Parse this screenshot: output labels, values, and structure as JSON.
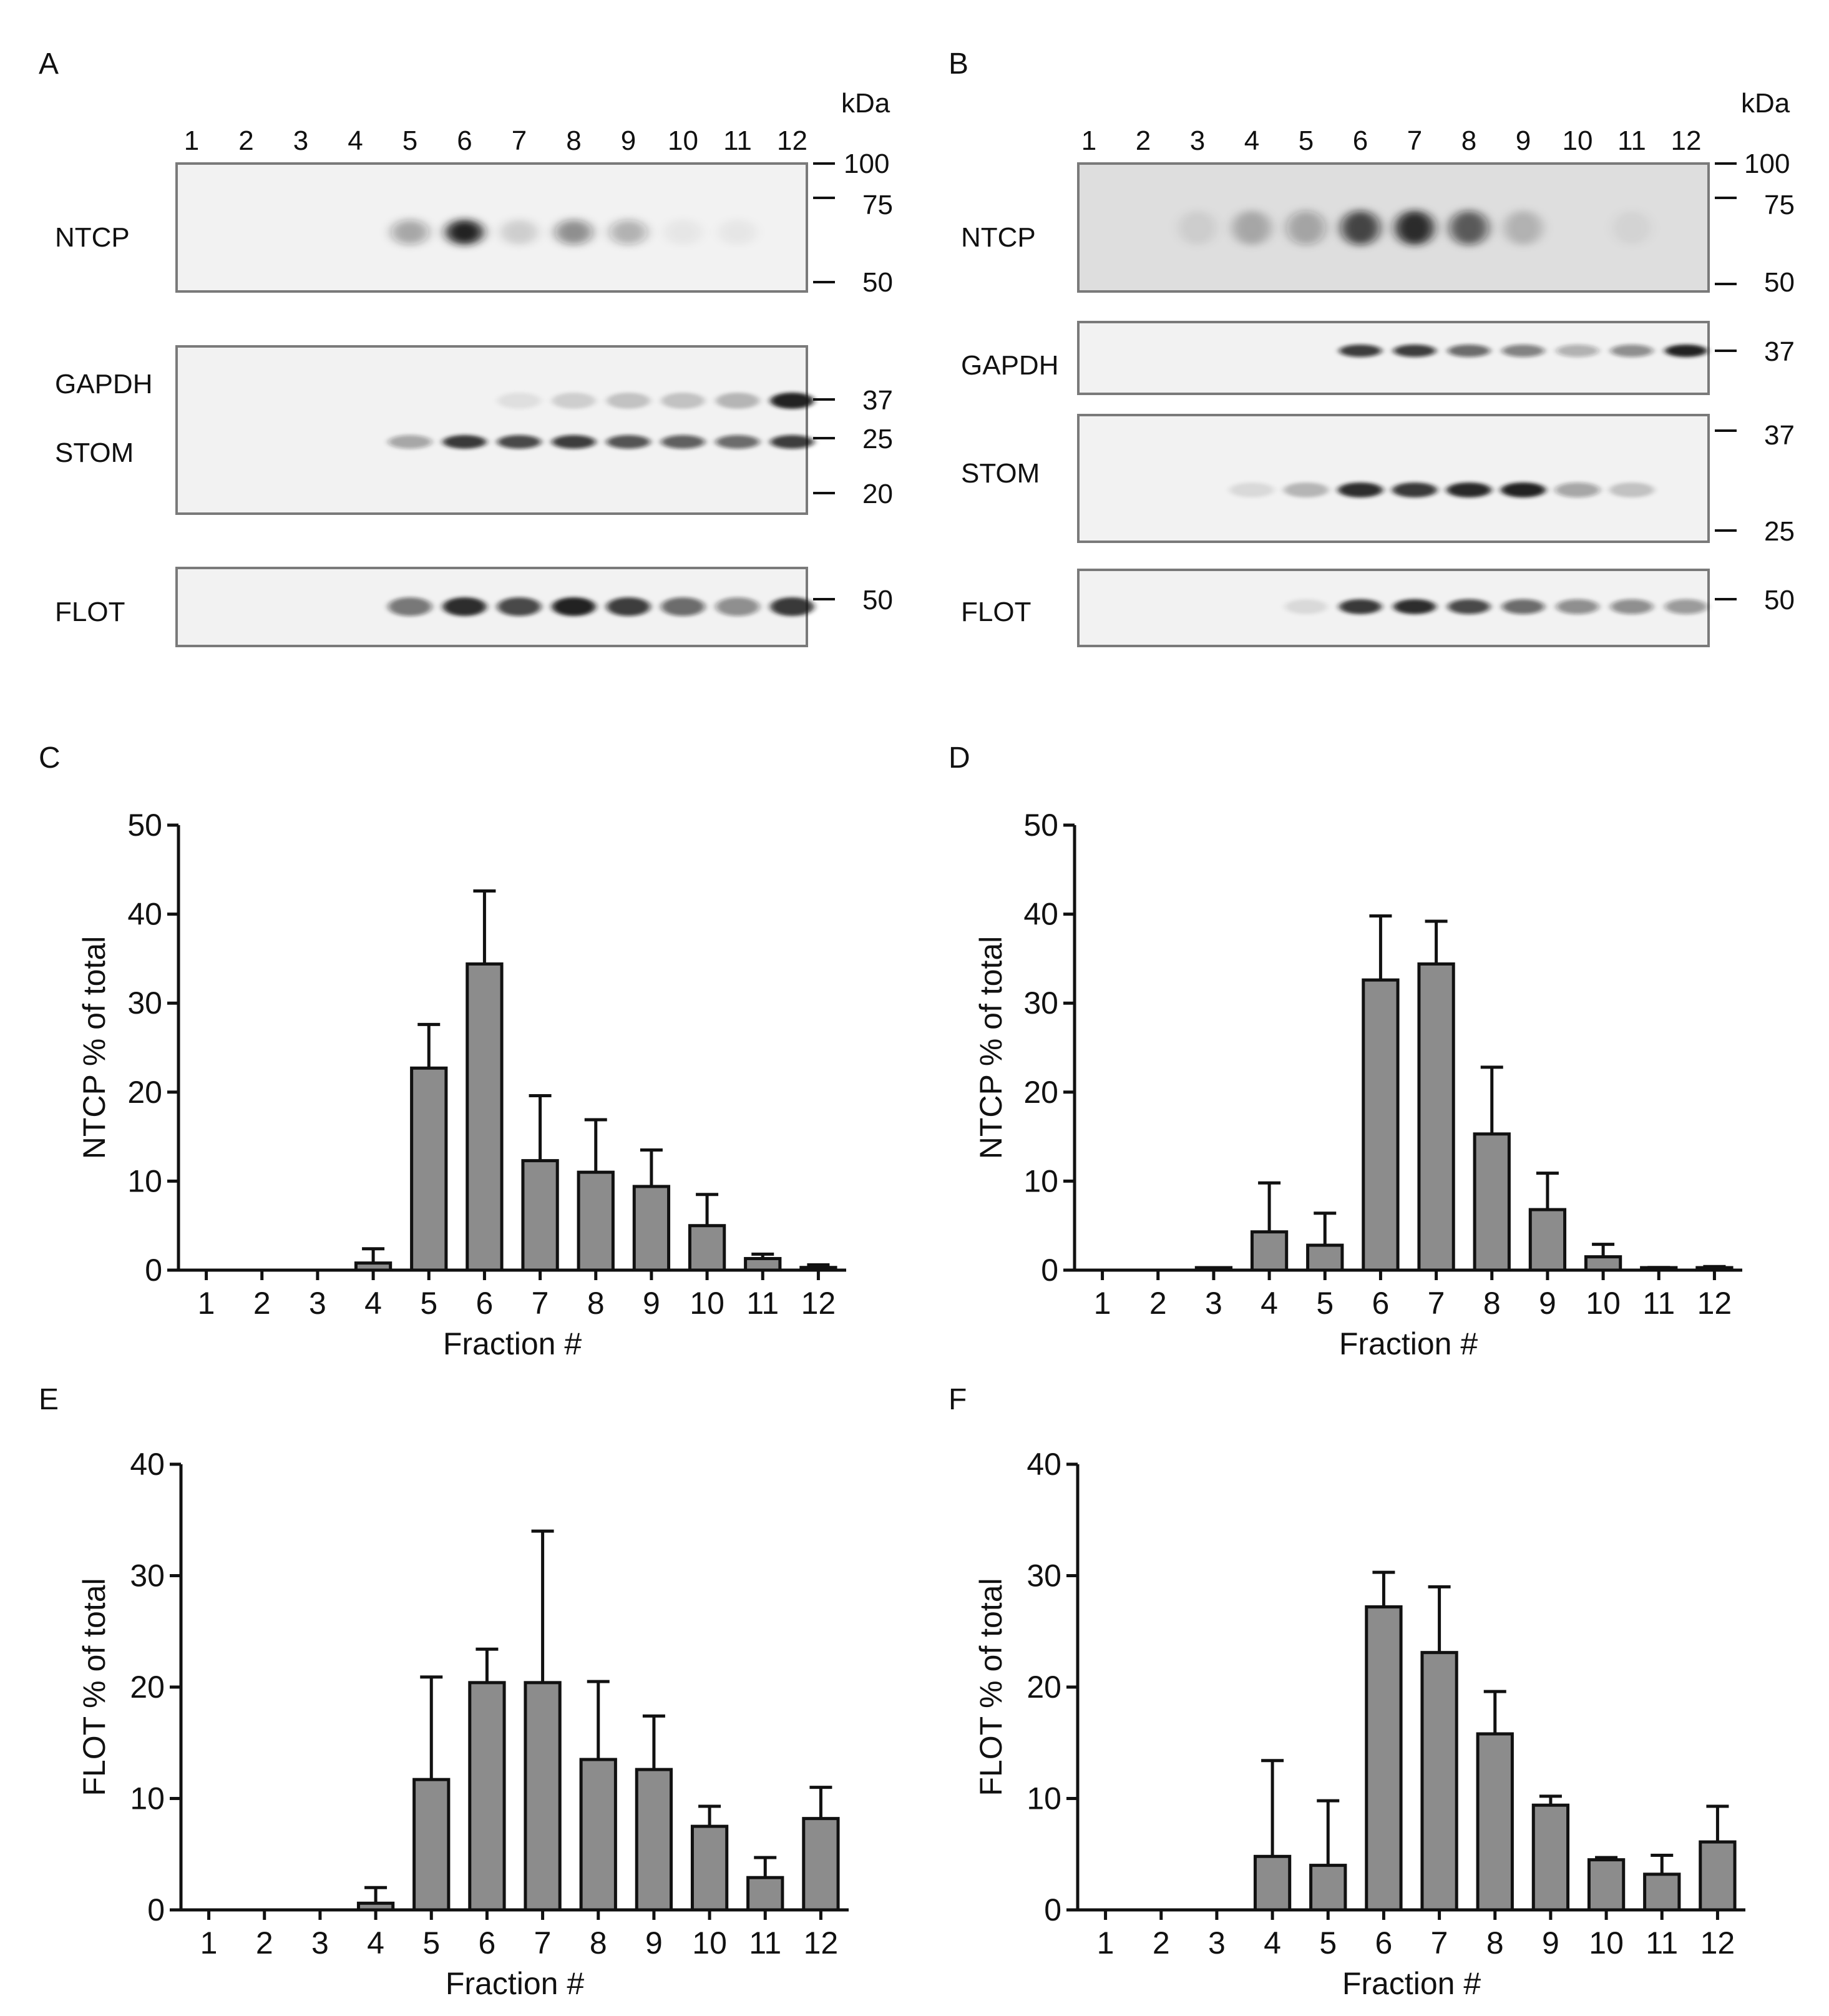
{
  "colors": {
    "bar_fill": "#8c8c8c",
    "axis": "#111111",
    "blot_bg": "#f2f2f2",
    "blot_border": "#7a7a7a",
    "band": "#141414"
  },
  "panels": {
    "A": {
      "letter": "A",
      "kda": "kDa",
      "lanes": [
        "1",
        "2",
        "3",
        "4",
        "5",
        "6",
        "7",
        "8",
        "9",
        "10",
        "11",
        "12"
      ],
      "blots": [
        {
          "labels": [
            "NTCP"
          ],
          "markers": [
            "100",
            "75",
            "50"
          ],
          "bands": [
            {
              "lane": 5,
              "strength": 0.35
            },
            {
              "lane": 6,
              "strength": 0.95
            },
            {
              "lane": 7,
              "strength": 0.15
            },
            {
              "lane": 8,
              "strength": 0.45
            },
            {
              "lane": 9,
              "strength": 0.3
            },
            {
              "lane": 10,
              "strength": 0.05
            },
            {
              "lane": 11,
              "strength": 0.05
            }
          ]
        },
        {
          "labels": [
            "GAPDH",
            "STOM"
          ],
          "markers": [
            "37",
            "25",
            "20"
          ],
          "bands": [
            {
              "lane": 5,
              "strength": 0.35
            },
            {
              "lane": 6,
              "strength": 0.85
            },
            {
              "lane": 7,
              "strength": 0.75
            },
            {
              "lane": 8,
              "strength": 0.8
            },
            {
              "lane": 9,
              "strength": 0.7
            },
            {
              "lane": 10,
              "strength": 0.65
            },
            {
              "lane": 11,
              "strength": 0.6
            },
            {
              "lane": 12,
              "strength": 0.8
            }
          ],
          "bands_upper": [
            {
              "lane": 7,
              "strength": 0.08
            },
            {
              "lane": 8,
              "strength": 0.15
            },
            {
              "lane": 9,
              "strength": 0.2
            },
            {
              "lane": 10,
              "strength": 0.2
            },
            {
              "lane": 11,
              "strength": 0.25
            },
            {
              "lane": 12,
              "strength": 0.95
            }
          ]
        },
        {
          "labels": [
            "FLOT"
          ],
          "markers": [
            "50"
          ],
          "bands": [
            {
              "lane": 5,
              "strength": 0.55
            },
            {
              "lane": 6,
              "strength": 0.9
            },
            {
              "lane": 7,
              "strength": 0.75
            },
            {
              "lane": 8,
              "strength": 0.95
            },
            {
              "lane": 9,
              "strength": 0.8
            },
            {
              "lane": 10,
              "strength": 0.6
            },
            {
              "lane": 11,
              "strength": 0.45
            },
            {
              "lane": 12,
              "strength": 0.85
            }
          ]
        }
      ]
    },
    "B": {
      "letter": "B",
      "kda": "kDa",
      "lanes": [
        "1",
        "2",
        "3",
        "4",
        "5",
        "6",
        "7",
        "8",
        "9",
        "10",
        "11",
        "12"
      ],
      "blots": [
        {
          "labels": [
            "NTCP"
          ],
          "markers": [
            "100",
            "75",
            "50"
          ],
          "bands": [
            {
              "lane": 3,
              "strength": 0.08
            },
            {
              "lane": 4,
              "strength": 0.25
            },
            {
              "lane": 5,
              "strength": 0.3
            },
            {
              "lane": 6,
              "strength": 0.75
            },
            {
              "lane": 7,
              "strength": 0.9
            },
            {
              "lane": 8,
              "strength": 0.65
            },
            {
              "lane": 9,
              "strength": 0.2
            },
            {
              "lane": 11,
              "strength": 0.05
            }
          ]
        },
        {
          "labels": [
            "GAPDH"
          ],
          "markers": [
            "37"
          ],
          "bands": [
            {
              "lane": 6,
              "strength": 0.8
            },
            {
              "lane": 7,
              "strength": 0.8
            },
            {
              "lane": 8,
              "strength": 0.6
            },
            {
              "lane": 9,
              "strength": 0.5
            },
            {
              "lane": 10,
              "strength": 0.3
            },
            {
              "lane": 11,
              "strength": 0.45
            },
            {
              "lane": 12,
              "strength": 0.95
            }
          ]
        },
        {
          "labels": [
            "STOM"
          ],
          "markers": [
            "37",
            "25"
          ],
          "bands": [
            {
              "lane": 4,
              "strength": 0.1
            },
            {
              "lane": 5,
              "strength": 0.25
            },
            {
              "lane": 6,
              "strength": 0.9
            },
            {
              "lane": 7,
              "strength": 0.85
            },
            {
              "lane": 8,
              "strength": 0.92
            },
            {
              "lane": 9,
              "strength": 0.95
            },
            {
              "lane": 10,
              "strength": 0.35
            },
            {
              "lane": 11,
              "strength": 0.2
            }
          ]
        },
        {
          "labels": [
            "FLOT"
          ],
          "markers": [
            "50"
          ],
          "bands": [
            {
              "lane": 5,
              "strength": 0.1
            },
            {
              "lane": 6,
              "strength": 0.85
            },
            {
              "lane": 7,
              "strength": 0.9
            },
            {
              "lane": 8,
              "strength": 0.75
            },
            {
              "lane": 9,
              "strength": 0.6
            },
            {
              "lane": 10,
              "strength": 0.45
            },
            {
              "lane": 11,
              "strength": 0.45
            },
            {
              "lane": 12,
              "strength": 0.4
            }
          ]
        }
      ]
    }
  },
  "chart_data": [
    {
      "panel": "C",
      "type": "bar",
      "title": "",
      "xlabel": "Fraction #",
      "ylabel": "NTCP % of total",
      "categories": [
        "1",
        "2",
        "3",
        "4",
        "5",
        "6",
        "7",
        "8",
        "9",
        "10",
        "11",
        "12"
      ],
      "values": [
        0,
        0,
        0,
        0.8,
        22.7,
        34.4,
        12.3,
        11,
        9.4,
        5,
        1.3,
        0.3
      ],
      "errors": [
        0,
        0,
        0,
        1.6,
        4.9,
        8.2,
        7.3,
        5.9,
        4.1,
        3.5,
        0.5,
        0.3
      ],
      "ylim": [
        0,
        50
      ],
      "yticks": [
        "0",
        "10",
        "20",
        "30",
        "40",
        "50"
      ]
    },
    {
      "panel": "D",
      "type": "bar",
      "title": "",
      "xlabel": "Fraction #",
      "ylabel": "NTCP % of total",
      "categories": [
        "1",
        "2",
        "3",
        "4",
        "5",
        "6",
        "7",
        "8",
        "9",
        "10",
        "11",
        "12"
      ],
      "values": [
        0,
        0,
        0.1,
        4.3,
        2.8,
        32.6,
        34.4,
        15.3,
        6.8,
        1.5,
        0.1,
        0.1
      ],
      "errors": [
        0,
        0,
        0.1,
        5.5,
        3.6,
        7.2,
        4.8,
        7.5,
        4.1,
        1.4,
        0.2,
        0.3
      ],
      "ylim": [
        0,
        50
      ],
      "yticks": [
        "0",
        "10",
        "20",
        "30",
        "40",
        "50"
      ]
    },
    {
      "panel": "E",
      "type": "bar",
      "title": "",
      "xlabel": "Fraction #",
      "ylabel": "FLOT % of total",
      "categories": [
        "1",
        "2",
        "3",
        "4",
        "5",
        "6",
        "7",
        "8",
        "9",
        "10",
        "11",
        "12"
      ],
      "values": [
        0,
        0,
        0,
        0.6,
        11.7,
        20.4,
        20.4,
        13.5,
        12.6,
        7.5,
        2.9,
        8.2
      ],
      "errors": [
        0,
        0,
        0,
        1.4,
        9.2,
        3,
        13.6,
        7,
        4.8,
        1.8,
        1.8,
        2.8
      ],
      "ylim": [
        0,
        40
      ],
      "yticks": [
        "0",
        "10",
        "20",
        "30",
        "40"
      ]
    },
    {
      "panel": "F",
      "type": "bar",
      "title": "",
      "xlabel": "Fraction #",
      "ylabel": "FLOT % of total",
      "categories": [
        "1",
        "2",
        "3",
        "4",
        "5",
        "6",
        "7",
        "8",
        "9",
        "10",
        "11",
        "12"
      ],
      "values": [
        0,
        0,
        0,
        4.8,
        4,
        27.2,
        23.1,
        15.8,
        9.4,
        4.5,
        3.2,
        6.1
      ],
      "errors": [
        0,
        0,
        0,
        8.6,
        5.8,
        3.1,
        5.9,
        3.8,
        0.8,
        0.2,
        1.7,
        3.2
      ],
      "ylim": [
        0,
        40
      ],
      "yticks": [
        "0",
        "10",
        "20",
        "30",
        "40"
      ]
    }
  ]
}
